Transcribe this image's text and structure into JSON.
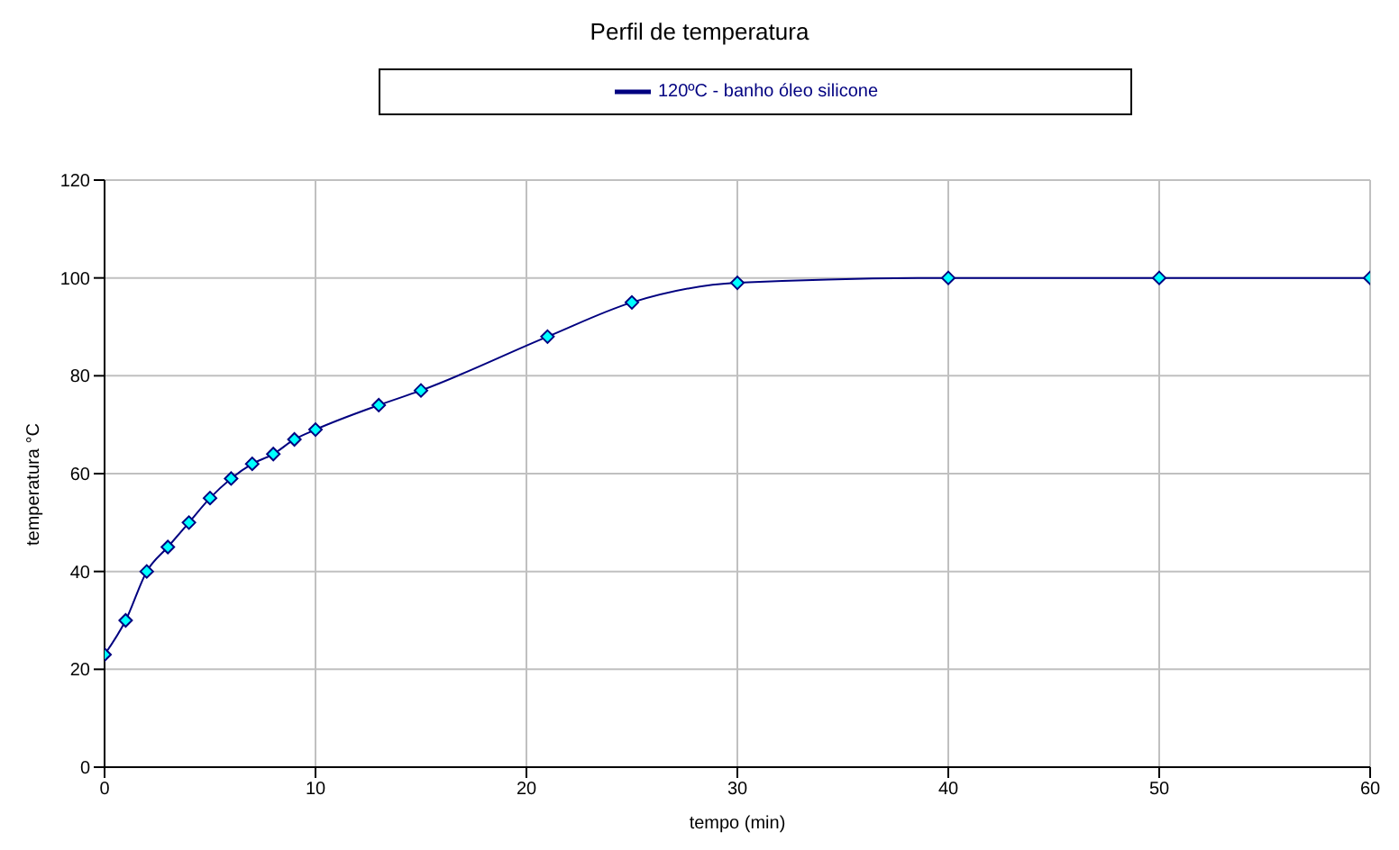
{
  "chart_data": {
    "type": "line",
    "title": "Perfil de temperatura",
    "xlabel": "tempo (min)",
    "ylabel": "temperatura °C",
    "x": [
      0,
      1,
      2,
      3,
      4,
      5,
      6,
      7,
      8,
      9,
      10,
      13,
      15,
      21,
      25,
      30,
      40,
      50,
      60
    ],
    "series": [
      {
        "name": "120ºC - banho óleo silicone",
        "color": "#000080",
        "values": [
          23,
          30,
          40,
          45,
          50,
          55,
          59,
          62,
          64,
          67,
          69,
          74,
          77,
          88,
          95,
          99,
          100,
          100,
          100
        ]
      }
    ],
    "xlim": [
      0,
      60
    ],
    "xticks": [
      0,
      10,
      20,
      30,
      40,
      50,
      60
    ],
    "ylim": [
      0,
      120
    ],
    "yticks": [
      0,
      20,
      40,
      60,
      80,
      100,
      120
    ],
    "grid": true,
    "legend": "top",
    "marker": "diamond",
    "line_style": "solid"
  }
}
